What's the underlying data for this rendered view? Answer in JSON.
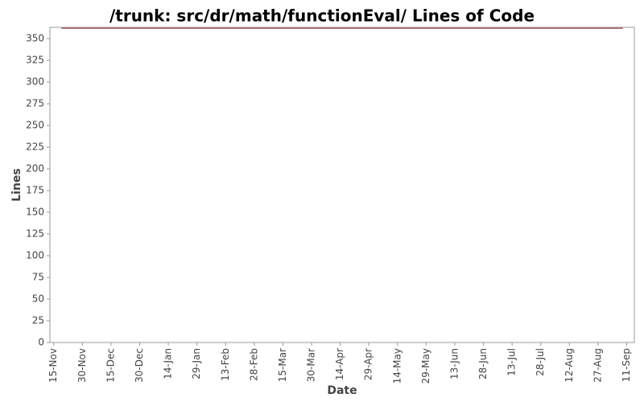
{
  "chart_data": {
    "type": "line",
    "title": "/trunk: src/dr/math/functionEval/ Lines of Code",
    "x_label": "Date",
    "y_label": "Lines",
    "x": [
      4,
      298
    ],
    "series": [
      {
        "name": "Lines",
        "color": "#8b1a1a",
        "values": [
          362,
          362
        ]
      }
    ],
    "xlim": [
      -2,
      304
    ],
    "xticks": [
      {
        "value": 0,
        "label": "15-Nov"
      },
      {
        "value": 15,
        "label": "30-Nov"
      },
      {
        "value": 30,
        "label": "15-Dec"
      },
      {
        "value": 45,
        "label": "30-Dec"
      },
      {
        "value": 60,
        "label": "14-Jan"
      },
      {
        "value": 75,
        "label": "29-Jan"
      },
      {
        "value": 90,
        "label": "13-Feb"
      },
      {
        "value": 105,
        "label": "28-Feb"
      },
      {
        "value": 120,
        "label": "15-Mar"
      },
      {
        "value": 135,
        "label": "30-Mar"
      },
      {
        "value": 150,
        "label": "14-Apr"
      },
      {
        "value": 165,
        "label": "29-Apr"
      },
      {
        "value": 180,
        "label": "14-May"
      },
      {
        "value": 195,
        "label": "29-May"
      },
      {
        "value": 210,
        "label": "13-Jun"
      },
      {
        "value": 225,
        "label": "28-Jun"
      },
      {
        "value": 240,
        "label": "13-Jul"
      },
      {
        "value": 255,
        "label": "28-Jul"
      },
      {
        "value": 270,
        "label": "12-Aug"
      },
      {
        "value": 285,
        "label": "27-Aug"
      },
      {
        "value": 300,
        "label": "11-Sep"
      }
    ],
    "ylim": [
      0,
      363
    ],
    "yticks": [
      0,
      25,
      50,
      75,
      100,
      125,
      150,
      175,
      200,
      225,
      250,
      275,
      300,
      325,
      350
    ]
  }
}
